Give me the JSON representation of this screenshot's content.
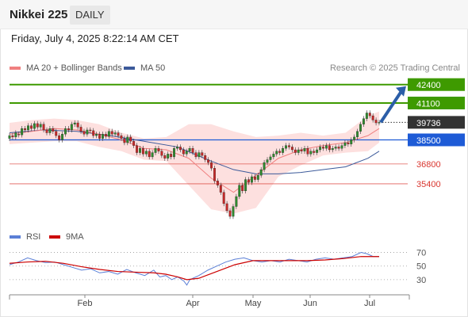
{
  "header": {
    "title": "Nikkei 225",
    "period": "DAILY"
  },
  "timestamp": "Friday, July 4, 2025 8:22:14 AM CET",
  "legend": {
    "ma20_label": "MA 20 + Bollinger Bands",
    "ma50_label": "MA 50",
    "copyright": "Research © 2025 Trading Central",
    "rsi_label": "RSI",
    "rsi_ma_label": "9MA"
  },
  "colors": {
    "up": "#2e8b2e",
    "down": "#c62828",
    "ma20": "#f08080",
    "ma50": "#3c5a9a",
    "band": "#fde0df",
    "rsi": "#5b7fd6",
    "rsi_ma": "#cc0000",
    "blue_level": "#1e5bd6"
  },
  "chart_data": [
    {
      "type": "candlestick",
      "x_axis": {
        "tick_labels": [
          "Feb",
          "Apr",
          "May",
          "Jun",
          "Jul"
        ]
      },
      "price_range": [
        32600,
        43000
      ],
      "levels": [
        {
          "value": 42400,
          "label": "42400",
          "style": "resistance",
          "color": "#3e9a00"
        },
        {
          "value": 41100,
          "label": "41100",
          "style": "resistance",
          "color": "#3e9a00"
        },
        {
          "value": 39736,
          "label": "39736",
          "style": "last",
          "color": "#333333"
        },
        {
          "value": 38500,
          "label": "38500",
          "style": "pivot",
          "color": "#1e5bd6"
        },
        {
          "value": 36800,
          "label": "36800",
          "style": "support",
          "color": "#d9362f"
        },
        {
          "value": 35400,
          "label": "35400",
          "style": "support",
          "color": "#d9362f"
        }
      ],
      "last_price": 39736,
      "ma20": [
        [
          0,
          38900
        ],
        [
          10,
          39100
        ],
        [
          20,
          39300
        ],
        [
          30,
          39200
        ],
        [
          40,
          38900
        ],
        [
          50,
          38500
        ],
        [
          60,
          37900
        ],
        [
          70,
          37800
        ],
        [
          80,
          37200
        ],
        [
          90,
          35800
        ],
        [
          100,
          34800
        ],
        [
          110,
          36000
        ],
        [
          120,
          37200
        ],
        [
          130,
          37800
        ],
        [
          140,
          38100
        ],
        [
          150,
          38300
        ],
        [
          160,
          38800
        ],
        [
          165,
          39300
        ]
      ],
      "ma50": [
        [
          0,
          39000
        ],
        [
          15,
          39200
        ],
        [
          30,
          39100
        ],
        [
          45,
          38800
        ],
        [
          60,
          38400
        ],
        [
          75,
          38000
        ],
        [
          90,
          37000
        ],
        [
          100,
          36400
        ],
        [
          110,
          36100
        ],
        [
          120,
          36100
        ],
        [
          130,
          36200
        ],
        [
          140,
          36400
        ],
        [
          150,
          36600
        ],
        [
          160,
          37200
        ],
        [
          165,
          37700
        ]
      ],
      "bollinger_band": [
        [
          0,
          39700,
          38200
        ],
        [
          10,
          39900,
          38300
        ],
        [
          20,
          40000,
          38400
        ],
        [
          30,
          39900,
          38400
        ],
        [
          40,
          39600,
          38000
        ],
        [
          50,
          39000,
          37700
        ],
        [
          60,
          38600,
          37100
        ],
        [
          70,
          38700,
          37000
        ],
        [
          80,
          39600,
          35300
        ],
        [
          90,
          39600,
          33600
        ],
        [
          100,
          39100,
          33300
        ],
        [
          110,
          38700,
          33700
        ],
        [
          120,
          38800,
          35900
        ],
        [
          130,
          39000,
          36700
        ],
        [
          140,
          38800,
          37400
        ],
        [
          150,
          39000,
          37600
        ],
        [
          160,
          40200,
          37700
        ],
        [
          165,
          40500,
          38300
        ]
      ],
      "candles": [
        [
          0,
          38600,
          38800
        ],
        [
          1,
          38800,
          38700
        ],
        [
          2,
          38700,
          39000
        ],
        [
          3,
          38900,
          38850
        ],
        [
          4,
          38850,
          39300
        ],
        [
          5,
          39300,
          39200
        ],
        [
          6,
          39200,
          39500
        ],
        [
          7,
          39500,
          39300
        ],
        [
          8,
          39300,
          39650
        ],
        [
          9,
          39650,
          39400
        ],
        [
          10,
          39400,
          39600
        ],
        [
          11,
          39600,
          39200
        ],
        [
          12,
          39200,
          39000
        ],
        [
          13,
          39000,
          39300
        ],
        [
          14,
          39300,
          39100
        ],
        [
          15,
          39100,
          38800
        ],
        [
          16,
          38800,
          38500
        ],
        [
          17,
          38500,
          38900
        ],
        [
          18,
          38900,
          39300
        ],
        [
          19,
          39300,
          39200
        ],
        [
          20,
          39200,
          39600
        ],
        [
          21,
          39600,
          39700
        ],
        [
          22,
          39700,
          39400
        ],
        [
          23,
          39400,
          39100
        ],
        [
          24,
          39100,
          38900
        ],
        [
          25,
          38900,
          39200
        ],
        [
          26,
          39200,
          39150
        ],
        [
          27,
          39150,
          38800
        ],
        [
          28,
          38800,
          38900
        ],
        [
          29,
          38900,
          38600
        ],
        [
          30,
          38600,
          38900
        ],
        [
          31,
          38900,
          38750
        ],
        [
          32,
          38750,
          39100
        ],
        [
          33,
          39100,
          38900
        ],
        [
          34,
          38900,
          39000
        ],
        [
          35,
          39000,
          38800
        ],
        [
          36,
          38800,
          38600
        ],
        [
          37,
          38600,
          38300
        ],
        [
          38,
          38300,
          38700
        ],
        [
          39,
          38700,
          38400
        ],
        [
          40,
          38400,
          38100
        ],
        [
          41,
          38100,
          37600
        ],
        [
          42,
          37600,
          37900
        ],
        [
          43,
          37900,
          37500
        ],
        [
          44,
          37500,
          37700
        ],
        [
          45,
          37700,
          37300
        ],
        [
          46,
          37300,
          37600
        ],
        [
          47,
          37600,
          37900
        ],
        [
          48,
          37900,
          37700
        ],
        [
          49,
          37700,
          37400
        ],
        [
          50,
          37400,
          37200
        ],
        [
          51,
          37200,
          37500
        ],
        [
          52,
          37500,
          37300
        ],
        [
          53,
          37300,
          37900
        ],
        [
          54,
          37900,
          38000
        ],
        [
          55,
          38000,
          37800
        ],
        [
          56,
          37800,
          37500
        ],
        [
          57,
          37500,
          37700
        ],
        [
          58,
          37700,
          37900
        ],
        [
          59,
          37900,
          37600
        ],
        [
          60,
          37600,
          37300
        ],
        [
          61,
          37300,
          37600
        ],
        [
          62,
          37600,
          37400
        ],
        [
          63,
          37400,
          37100
        ],
        [
          64,
          37100,
          36900
        ],
        [
          65,
          36900,
          36500
        ],
        [
          66,
          36500,
          35600
        ],
        [
          67,
          35600,
          35300
        ],
        [
          68,
          35300,
          34800
        ],
        [
          69,
          34800,
          34000
        ],
        [
          70,
          34000,
          33500
        ],
        [
          71,
          33500,
          33100
        ],
        [
          72,
          33100,
          33800
        ],
        [
          73,
          33800,
          34500
        ],
        [
          74,
          34500,
          35300
        ],
        [
          75,
          35300,
          34900
        ],
        [
          76,
          34900,
          35700
        ],
        [
          77,
          35700,
          35500
        ],
        [
          78,
          35500,
          35900
        ],
        [
          79,
          35900,
          35700
        ],
        [
          80,
          35700,
          36000
        ],
        [
          81,
          36000,
          36400
        ],
        [
          82,
          36400,
          36900
        ],
        [
          83,
          36900,
          37100
        ],
        [
          84,
          37100,
          37300
        ],
        [
          85,
          37300,
          37500
        ],
        [
          86,
          37500,
          37700
        ],
        [
          87,
          37700,
          37600
        ],
        [
          88,
          37600,
          37900
        ],
        [
          89,
          37900,
          38100
        ],
        [
          90,
          38100,
          38000
        ],
        [
          91,
          38000,
          37800
        ],
        [
          92,
          37800,
          37600
        ],
        [
          93,
          37600,
          37800
        ],
        [
          94,
          37800,
          37700
        ],
        [
          95,
          37700,
          37900
        ],
        [
          96,
          37900,
          37500
        ],
        [
          97,
          37500,
          37700
        ],
        [
          98,
          37700,
          37600
        ],
        [
          99,
          37600,
          37800
        ],
        [
          100,
          37800,
          38000
        ],
        [
          101,
          38000,
          37900
        ],
        [
          102,
          37900,
          38100
        ],
        [
          103,
          38100,
          37800
        ],
        [
          104,
          37800,
          37900
        ],
        [
          105,
          37900,
          38000
        ],
        [
          106,
          38000,
          37900
        ],
        [
          107,
          37900,
          38100
        ],
        [
          108,
          38100,
          38300
        ],
        [
          109,
          38300,
          38200
        ],
        [
          110,
          38200,
          38500
        ],
        [
          111,
          38500,
          38700
        ],
        [
          112,
          38700,
          39100
        ],
        [
          113,
          39100,
          39600
        ],
        [
          114,
          39600,
          40000
        ],
        [
          115,
          40000,
          40400
        ],
        [
          116,
          40400,
          40200
        ],
        [
          117,
          40200,
          39900
        ],
        [
          118,
          39900,
          39700
        ],
        [
          119,
          39700,
          39736
        ]
      ]
    },
    {
      "type": "line",
      "name": "RSI",
      "ylim": [
        10,
        80
      ],
      "y_ticks": [
        "70",
        "50",
        "30"
      ],
      "rsi": [
        [
          0,
          52
        ],
        [
          6,
          56
        ],
        [
          12,
          62
        ],
        [
          18,
          58
        ],
        [
          24,
          55
        ],
        [
          30,
          56
        ],
        [
          36,
          52
        ],
        [
          42,
          48
        ],
        [
          48,
          44
        ],
        [
          54,
          46
        ],
        [
          60,
          40
        ],
        [
          66,
          42
        ],
        [
          72,
          38
        ],
        [
          78,
          45
        ],
        [
          84,
          40
        ],
        [
          90,
          36
        ],
        [
          96,
          44
        ],
        [
          100,
          34
        ],
        [
          104,
          36
        ],
        [
          108,
          30
        ],
        [
          112,
          34
        ],
        [
          116,
          28
        ],
        [
          118,
          22
        ],
        [
          120,
          30
        ],
        [
          126,
          36
        ],
        [
          132,
          44
        ],
        [
          138,
          50
        ],
        [
          144,
          56
        ],
        [
          150,
          60
        ],
        [
          156,
          62
        ],
        [
          162,
          58
        ],
        [
          168,
          56
        ],
        [
          174,
          58
        ],
        [
          180,
          56
        ],
        [
          186,
          60
        ],
        [
          192,
          58
        ],
        [
          198,
          56
        ],
        [
          204,
          60
        ],
        [
          210,
          62
        ],
        [
          216,
          60
        ],
        [
          222,
          62
        ],
        [
          228,
          64
        ],
        [
          234,
          70
        ],
        [
          238,
          68
        ],
        [
          242,
          64
        ],
        [
          246,
          64
        ]
      ],
      "rsi_ma": [
        [
          0,
          54
        ],
        [
          12,
          56
        ],
        [
          24,
          57
        ],
        [
          36,
          54
        ],
        [
          48,
          49
        ],
        [
          60,
          45
        ],
        [
          72,
          42
        ],
        [
          84,
          41
        ],
        [
          96,
          40
        ],
        [
          104,
          38
        ],
        [
          112,
          34
        ],
        [
          118,
          30
        ],
        [
          126,
          32
        ],
        [
          138,
          42
        ],
        [
          150,
          52
        ],
        [
          162,
          58
        ],
        [
          174,
          58
        ],
        [
          186,
          58
        ],
        [
          198,
          58
        ],
        [
          210,
          59
        ],
        [
          222,
          61
        ],
        [
          234,
          64
        ],
        [
          246,
          64
        ]
      ]
    }
  ]
}
